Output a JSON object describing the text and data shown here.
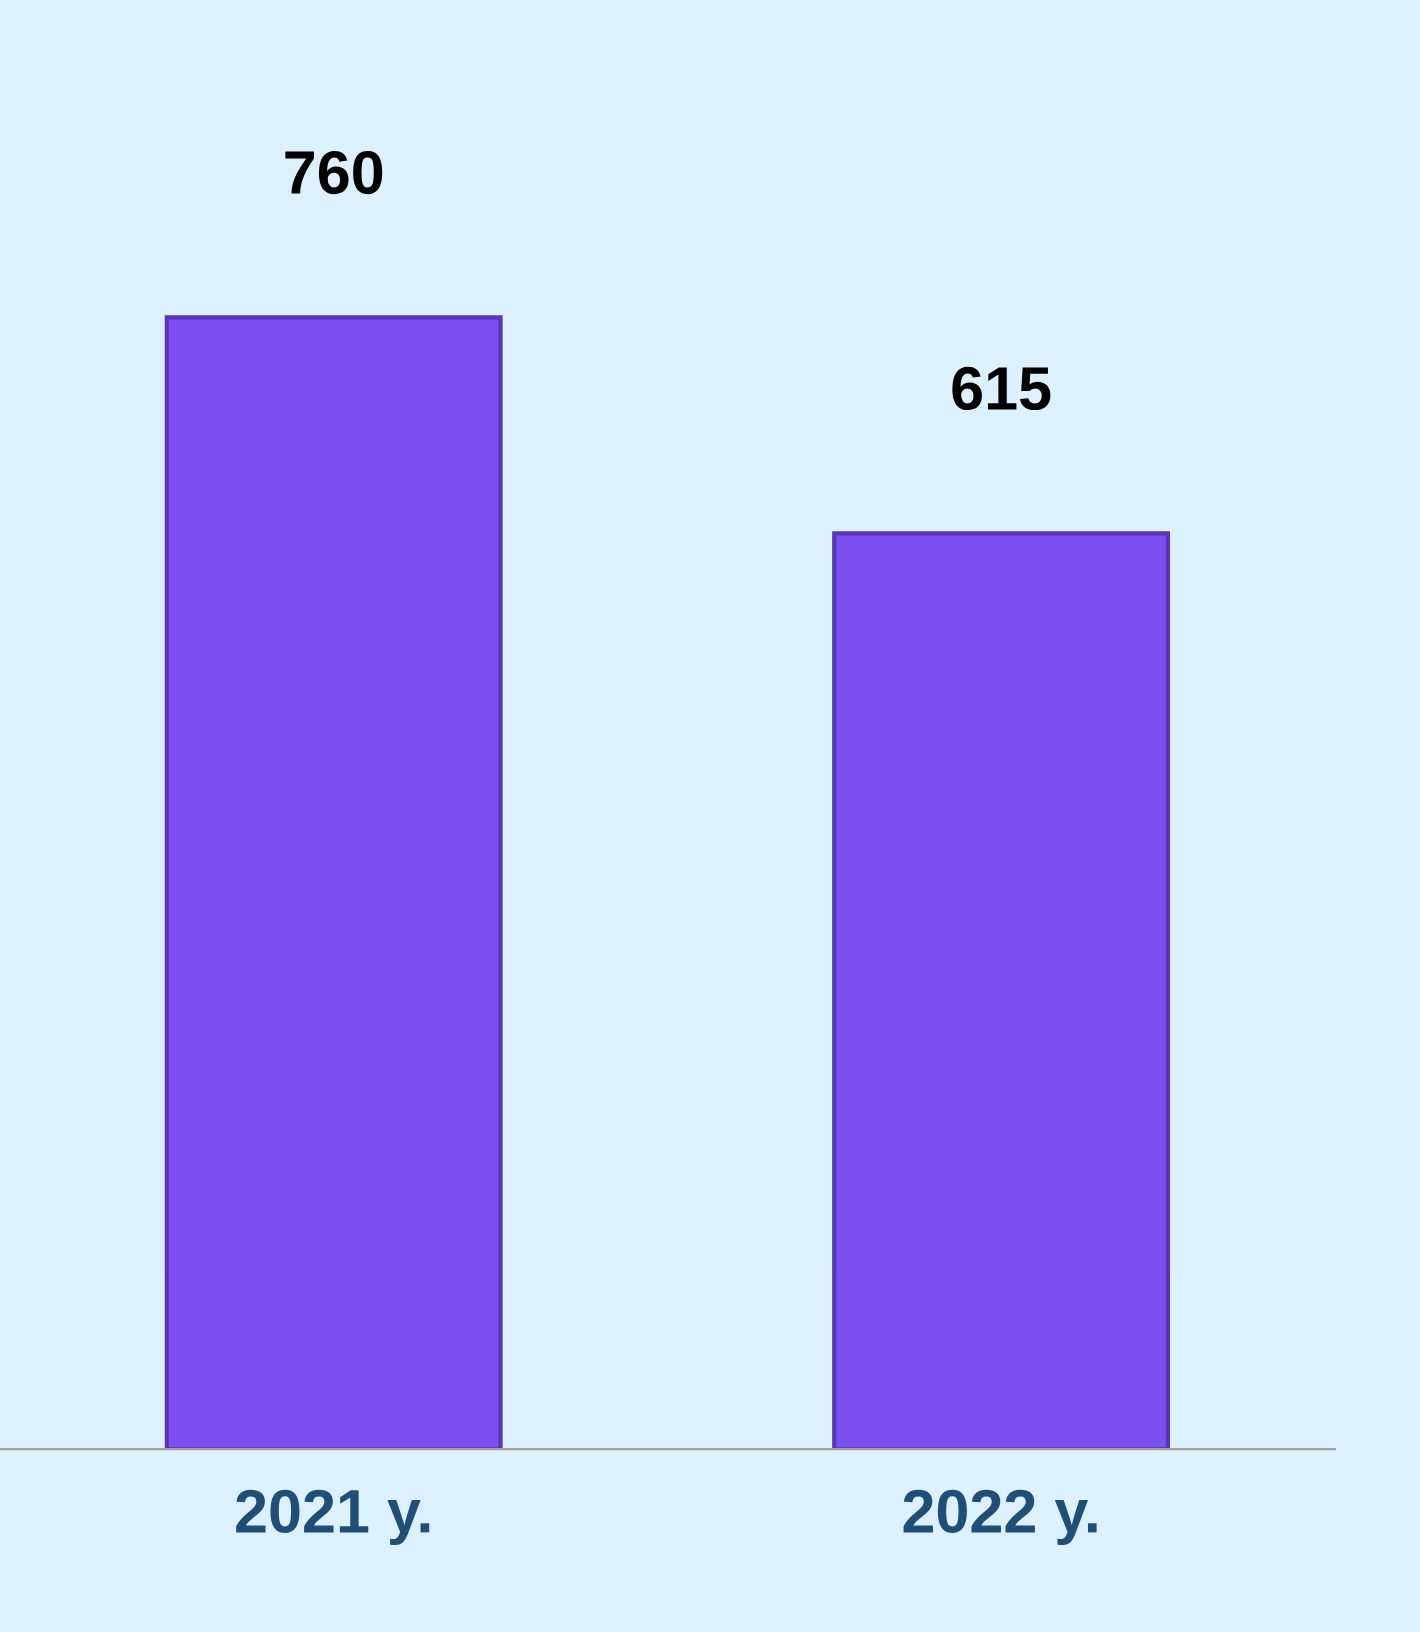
{
  "chart_data": {
    "type": "bar",
    "categories": [
      "2021 y.",
      "2022 y."
    ],
    "values": [
      760,
      615
    ],
    "color": "#7b4ff0",
    "data_labels": true,
    "grid": false,
    "legend": false
  }
}
